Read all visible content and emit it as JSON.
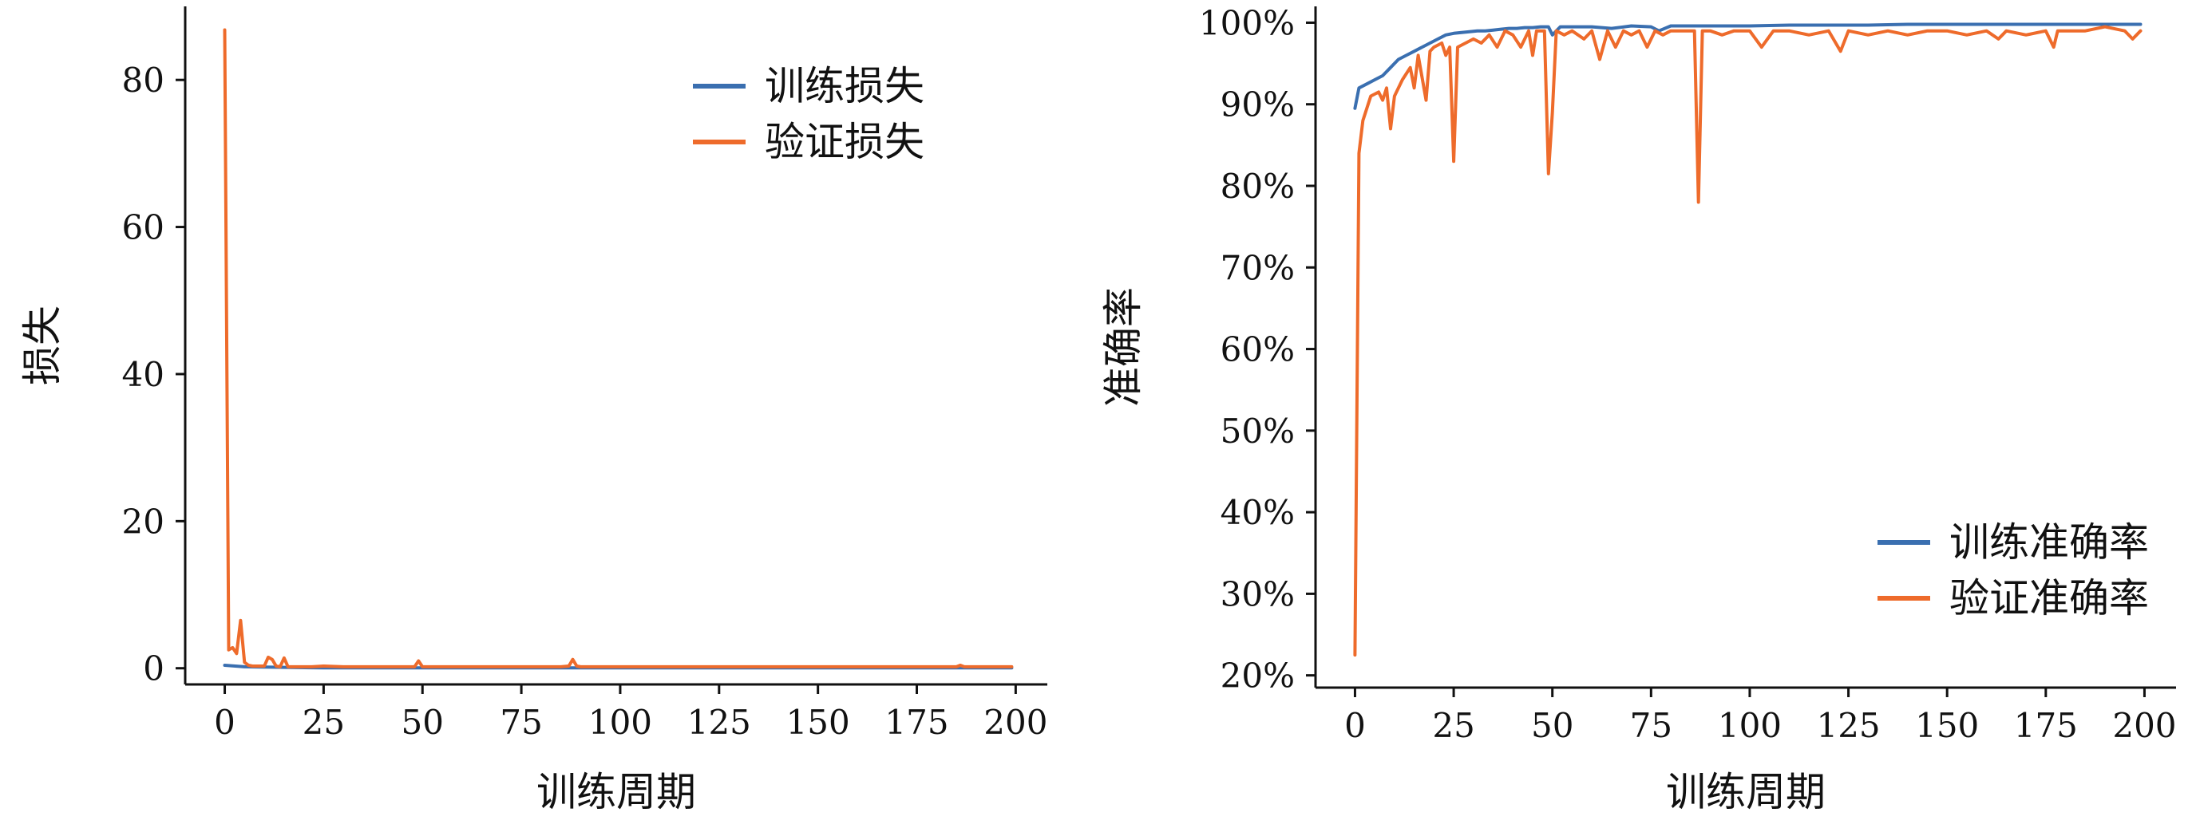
{
  "colors": {
    "train": "#3a6fb0",
    "val": "#ee6b2b",
    "axis": "#111111"
  },
  "chart_data": [
    {
      "type": "line",
      "title": "",
      "xlabel": "训练周期",
      "ylabel": "损失",
      "xlim": [
        -10,
        208
      ],
      "ylim": [
        -2.2,
        90
      ],
      "xticks": [
        0,
        25,
        50,
        75,
        100,
        125,
        150,
        175,
        200
      ],
      "yticks": [
        0,
        20,
        40,
        60,
        80
      ],
      "ytick_suffix": "",
      "grid": false,
      "legend_position": "top-right",
      "series": [
        {
          "name": "训练损失",
          "color_key": "train",
          "x": [
            0,
            5,
            25,
            50,
            100,
            150,
            199
          ],
          "y": [
            0.4,
            0.2,
            0.05,
            0.05,
            0.05,
            0.05,
            0.05
          ]
        },
        {
          "name": "验证损失",
          "color_key": "val",
          "x": [
            0,
            1,
            2,
            3,
            4,
            5,
            6,
            7,
            10,
            11,
            12,
            13,
            14,
            15,
            16,
            18,
            22,
            25,
            30,
            35,
            40,
            45,
            48,
            49,
            50,
            51,
            55,
            60,
            65,
            70,
            75,
            80,
            85,
            87,
            88,
            89,
            90,
            95,
            100,
            110,
            120,
            130,
            140,
            150,
            160,
            170,
            180,
            185,
            186,
            187,
            190,
            199
          ],
          "y": [
            86.8,
            2.5,
            2.8,
            2.0,
            6.5,
            0.8,
            0.4,
            0.3,
            0.3,
            1.5,
            1.2,
            0.3,
            0.2,
            1.4,
            0.2,
            0.2,
            0.2,
            0.3,
            0.2,
            0.2,
            0.2,
            0.2,
            0.2,
            1.0,
            0.2,
            0.2,
            0.2,
            0.2,
            0.2,
            0.2,
            0.2,
            0.2,
            0.2,
            0.3,
            1.2,
            0.3,
            0.2,
            0.2,
            0.2,
            0.2,
            0.2,
            0.2,
            0.2,
            0.2,
            0.2,
            0.2,
            0.2,
            0.2,
            0.4,
            0.2,
            0.2,
            0.2
          ]
        }
      ]
    },
    {
      "type": "line",
      "title": "",
      "xlabel": "训练周期",
      "ylabel": "准确率",
      "xlim": [
        -10,
        208
      ],
      "ylim": [
        18.5,
        102
      ],
      "xticks": [
        0,
        25,
        50,
        75,
        100,
        125,
        150,
        175,
        200
      ],
      "yticks": [
        20,
        30,
        40,
        50,
        60,
        70,
        80,
        90,
        100
      ],
      "ytick_suffix": "%",
      "grid": false,
      "legend_position": "bottom-right",
      "series": [
        {
          "name": "训练准确率",
          "color_key": "train",
          "x": [
            0,
            1,
            3,
            5,
            7,
            9,
            11,
            13,
            15,
            17,
            19,
            21,
            23,
            25,
            27,
            29,
            31,
            33,
            35,
            37,
            39,
            41,
            43,
            45,
            47,
            49,
            50,
            52,
            55,
            60,
            65,
            70,
            75,
            77,
            80,
            85,
            90,
            100,
            110,
            120,
            130,
            140,
            150,
            160,
            170,
            180,
            190,
            199
          ],
          "y": [
            89.5,
            92.0,
            92.5,
            93.0,
            93.5,
            94.5,
            95.5,
            96.0,
            96.5,
            97.0,
            97.5,
            98.0,
            98.5,
            98.7,
            98.8,
            98.9,
            99.0,
            99.0,
            99.1,
            99.2,
            99.3,
            99.3,
            99.4,
            99.4,
            99.5,
            99.5,
            98.5,
            99.5,
            99.5,
            99.5,
            99.3,
            99.6,
            99.5,
            99.0,
            99.6,
            99.6,
            99.6,
            99.6,
            99.7,
            99.7,
            99.7,
            99.8,
            99.8,
            99.8,
            99.8,
            99.8,
            99.8,
            99.8
          ]
        },
        {
          "name": "验证准确率",
          "color_key": "val",
          "x": [
            0,
            1,
            2,
            4,
            6,
            7,
            8,
            9,
            10,
            12,
            14,
            15,
            16,
            18,
            19,
            20,
            22,
            23,
            24,
            25,
            26,
            28,
            30,
            32,
            34,
            36,
            38,
            40,
            42,
            44,
            45,
            46,
            48,
            49,
            50,
            51,
            53,
            55,
            58,
            60,
            62,
            64,
            66,
            68,
            70,
            72,
            74,
            76,
            78,
            80,
            82,
            84,
            86,
            87,
            88,
            90,
            93,
            96,
            100,
            103,
            106,
            110,
            115,
            120,
            123,
            125,
            130,
            135,
            140,
            145,
            150,
            155,
            160,
            163,
            165,
            170,
            175,
            177,
            178,
            180,
            185,
            190,
            195,
            197,
            199
          ],
          "y": [
            22.5,
            84.0,
            88.0,
            91.0,
            91.5,
            90.5,
            92.0,
            87.0,
            91.0,
            93.0,
            94.5,
            92.0,
            96.0,
            90.5,
            96.5,
            97.0,
            97.5,
            96.0,
            97.0,
            83.0,
            97.0,
            97.5,
            98.0,
            97.5,
            98.5,
            97.0,
            99.0,
            98.5,
            97.0,
            99.0,
            96.0,
            99.0,
            99.0,
            81.5,
            89.0,
            99.0,
            98.5,
            99.0,
            98.0,
            99.0,
            95.5,
            99.0,
            97.0,
            99.0,
            98.5,
            99.0,
            97.0,
            99.0,
            98.5,
            99.0,
            99.0,
            99.0,
            99.0,
            78.0,
            99.0,
            99.0,
            98.5,
            99.0,
            99.0,
            97.0,
            99.0,
            99.0,
            98.5,
            99.0,
            96.5,
            99.0,
            98.5,
            99.0,
            98.5,
            99.0,
            99.0,
            98.5,
            99.0,
            98.0,
            99.0,
            98.5,
            99.0,
            97.0,
            99.0,
            99.0,
            99.0,
            99.5,
            99.0,
            98.0,
            99.0
          ]
        }
      ]
    }
  ]
}
